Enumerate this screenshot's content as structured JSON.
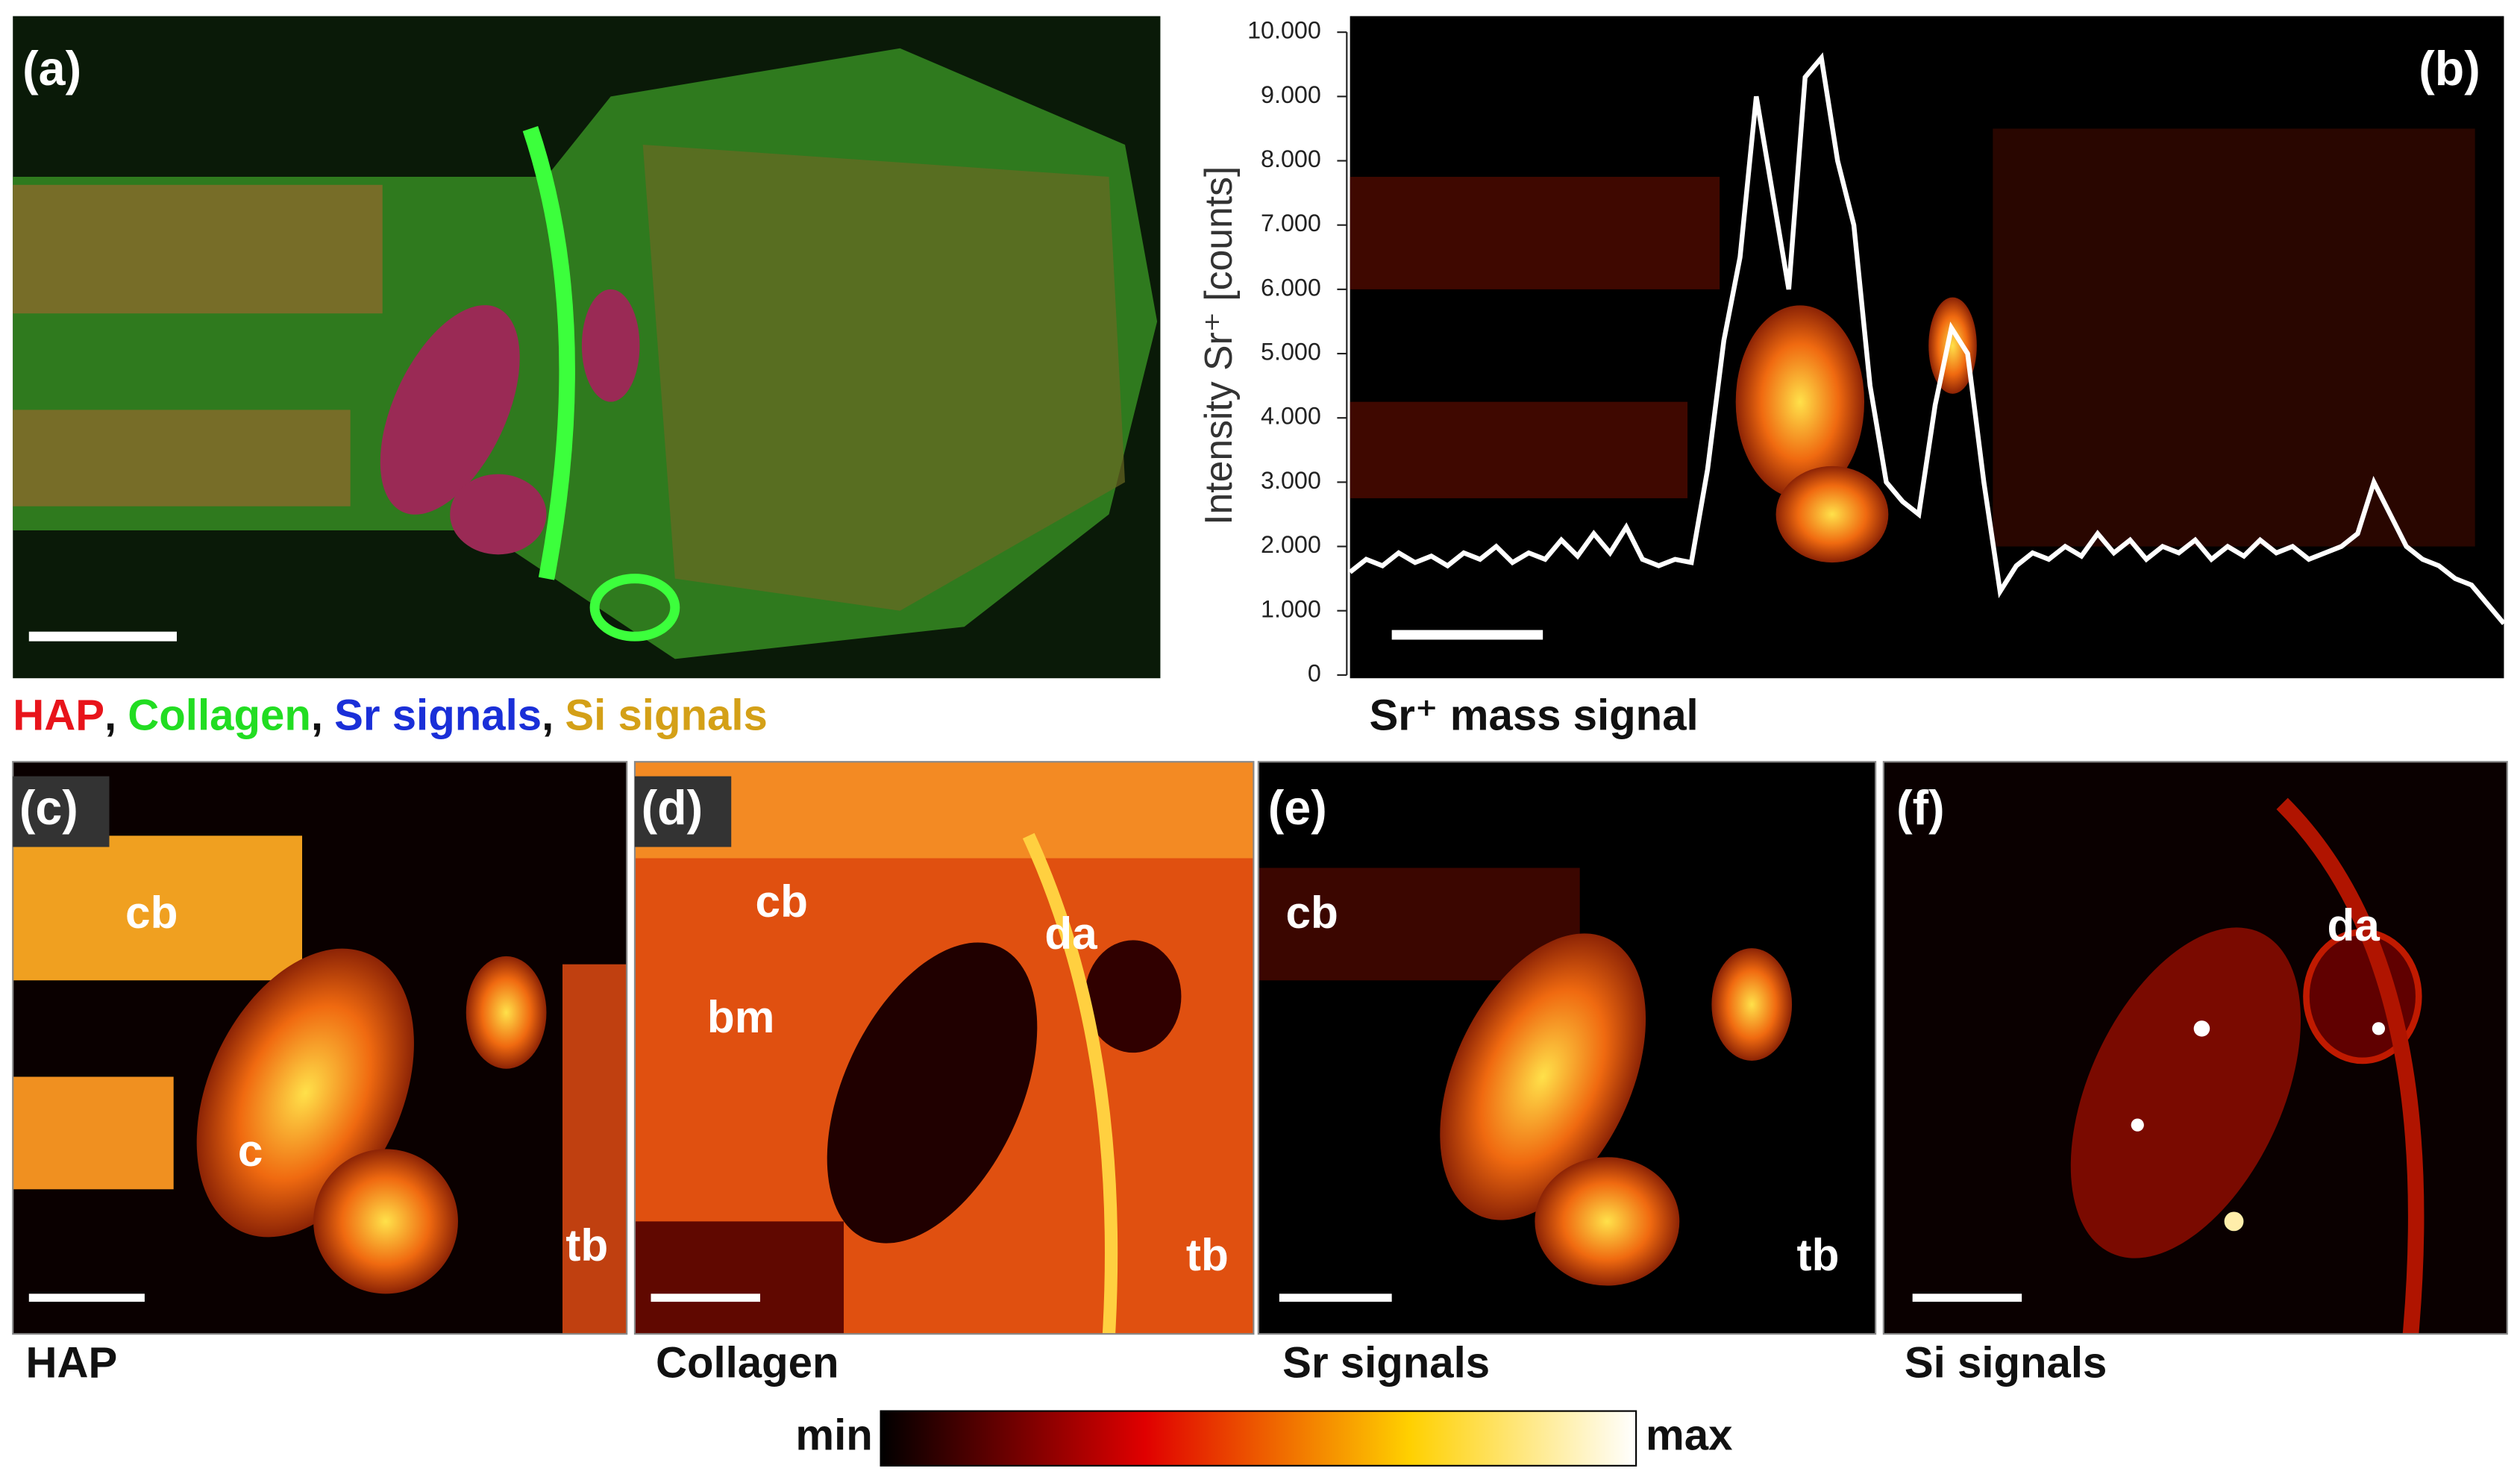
{
  "legend": {
    "items": [
      {
        "text": "HAP",
        "color": "#e8141b"
      },
      {
        "text": "Collagen",
        "color": "#22dd22"
      },
      {
        "text": "Sr signals",
        "color": "#1a2fd8"
      },
      {
        "text": "Si signals",
        "color": "#d4a017"
      }
    ],
    "separator": ","
  },
  "panels": [
    {
      "label": "(a)"
    },
    {
      "label": "(b)",
      "caption": "Sr⁺ mass signal"
    },
    {
      "label": "(c)",
      "caption": "HAP",
      "annotations": [
        "cb",
        "c",
        "tb"
      ]
    },
    {
      "label": "(d)",
      "caption": "Collagen",
      "annotations": [
        "cb",
        "bm",
        "da",
        "tb"
      ]
    },
    {
      "label": "(e)",
      "caption": "Sr signals",
      "annotations": [
        "cb",
        "tb"
      ]
    },
    {
      "label": "(f)",
      "caption": "Si signals",
      "annotations": [
        "da"
      ]
    }
  ],
  "colorbar": {
    "min": "min",
    "max": "max"
  },
  "chart_data": {
    "type": "line",
    "y_label": "Intensity Sr⁺ [counts]",
    "ylim": [
      0,
      10000
    ],
    "yticks": [
      0,
      {
        "value": 1000,
        "label": "1.000"
      },
      {
        "value": 2000,
        "label": "2.000"
      },
      {
        "value": 3000,
        "label": "3.000"
      },
      {
        "value": 4000,
        "label": "4.000"
      },
      {
        "value": 5000,
        "label": "5.000"
      },
      {
        "value": 6000,
        "label": "6.000"
      },
      {
        "value": 7000,
        "label": "7.000"
      },
      {
        "value": 8000,
        "label": "8.000"
      },
      {
        "value": 9000,
        "label": "9.000"
      },
      {
        "value": 10000,
        "label": "10.000"
      }
    ],
    "series": [
      {
        "color": "#ffffff",
        "values": [
          1600,
          1800,
          1700,
          1900,
          1750,
          1850,
          1700,
          1900,
          1800,
          2000,
          1750,
          1900,
          1800,
          2100,
          1850,
          2200,
          1900,
          2300,
          1800,
          1700,
          1800,
          1750,
          3200,
          5200,
          6500,
          9000,
          7500,
          6000,
          9300,
          9600,
          8000,
          7000,
          4500,
          3000,
          2700,
          2500,
          4200,
          5400,
          5000,
          3000,
          1300,
          1700,
          1900,
          1800,
          2000,
          1850,
          2200,
          1900,
          2100,
          1800,
          2000,
          1900,
          2100,
          1800,
          2000,
          1850,
          2100,
          1900,
          2000,
          1800,
          1900,
          2000,
          2200,
          3000,
          2500,
          2000,
          1800,
          1700,
          1500,
          1400,
          1100,
          800
        ]
      }
    ]
  }
}
